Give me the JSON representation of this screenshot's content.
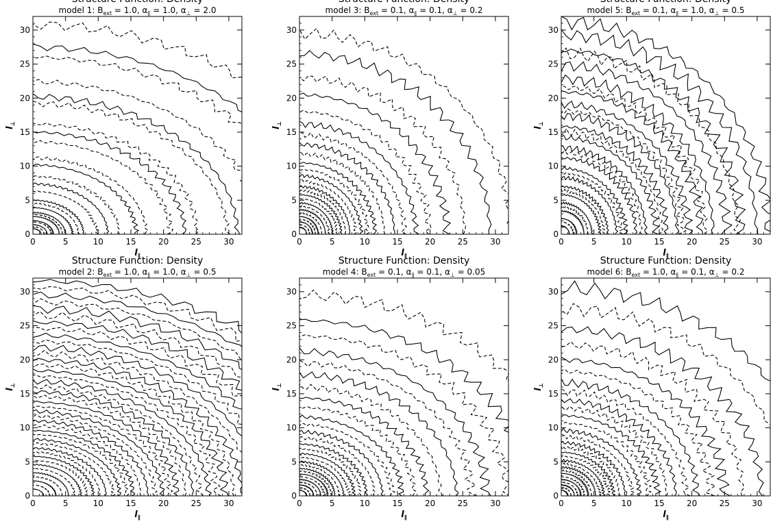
{
  "figure": {
    "panel_count": 6
  },
  "chart_data": [
    {
      "type": "contour",
      "title": "Structure Function: Density",
      "subtitle_parts": [
        "model 1: B",
        "ext",
        " = 1.0, α",
        "∥",
        " = 1.0, α",
        "⊥",
        " = 2.0"
      ],
      "xlabel": "l",
      "xlabel_sub": "∥",
      "ylabel": "l",
      "ylabel_sub": "⊥",
      "xlim": [
        0,
        32
      ],
      "ylim": [
        0,
        32
      ],
      "xticks": [
        0,
        5,
        10,
        15,
        20,
        25,
        30
      ],
      "yticks": [
        0,
        5,
        10,
        15,
        20,
        25,
        30
      ],
      "series": [
        {
          "style": "solid",
          "shape": "ellipse",
          "aspect_x_over_y": 1.55,
          "levels_y": [
            0.8,
            1.4,
            2.0,
            2.6,
            3.2,
            3.9,
            5.0,
            7.4,
            10.2,
            15.0,
            20.2,
            27.5
          ]
        },
        {
          "style": "dashed",
          "shape": "ellipse",
          "aspect_x_over_y": 1.55,
          "levels_y": [
            1.1,
            1.8,
            2.9,
            4.5,
            6.3,
            8.5,
            11.2,
            13.6,
            16.2,
            19.2,
            22.4,
            26.0,
            30.8
          ]
        }
      ]
    },
    {
      "type": "contour",
      "title": "Structure Function: Density",
      "subtitle_parts": [
        "model 3: B",
        "ext",
        " = 0.1, α",
        "∥",
        " = 0.1, α",
        "⊥",
        " = 0.2"
      ],
      "xlabel": "l",
      "xlabel_sub": "∥",
      "ylabel": "l",
      "ylabel_sub": "⊥",
      "xlim": [
        0,
        32
      ],
      "ylim": [
        0,
        32
      ],
      "xticks": [
        0,
        5,
        10,
        15,
        20,
        25,
        30
      ],
      "yticks": [
        0,
        5,
        10,
        15,
        20,
        25,
        30
      ],
      "series": [
        {
          "style": "solid",
          "shape": "ellipse",
          "aspect_x_over_y": 1.1,
          "levels_y": [
            1.0,
            1.8,
            2.6,
            3.6,
            4.6,
            5.8,
            7.0,
            8.6,
            10.5,
            13.2,
            16.2,
            20.5,
            26.5
          ]
        },
        {
          "style": "dashed",
          "shape": "ellipse",
          "aspect_x_over_y": 1.1,
          "levels_y": [
            1.4,
            2.2,
            3.1,
            4.1,
            5.2,
            6.4,
            7.8,
            9.5,
            11.8,
            14.6,
            18.0,
            23.0,
            29.5
          ]
        }
      ]
    },
    {
      "type": "contour",
      "title": "Structure Function: Density",
      "subtitle_parts": [
        "model 5: B",
        "ext",
        " = 0.1, α",
        "∥",
        " = 1.0, α",
        "⊥",
        " = 0.5"
      ],
      "xlabel": "l",
      "xlabel_sub": "∥",
      "ylabel": "l",
      "ylabel_sub": "⊥",
      "xlim": [
        0,
        32
      ],
      "ylim": [
        0,
        32
      ],
      "xticks": [
        0,
        5,
        10,
        15,
        20,
        25,
        30
      ],
      "yticks": [
        0,
        5,
        10,
        15,
        20,
        25,
        30
      ],
      "series": [
        {
          "style": "solid",
          "shape": "ellipse",
          "aspect_x_over_y": 1.02,
          "levels_y": [
            1.2,
            2.3,
            3.4,
            4.6,
            5.8,
            7.0,
            8.3,
            9.7,
            11.2,
            12.7,
            14.2,
            15.8,
            17.4,
            19.1,
            20.9,
            22.8,
            24.8,
            27.0,
            29.3,
            31.2
          ]
        },
        {
          "style": "dashed",
          "shape": "ellipse",
          "aspect_x_over_y": 1.02,
          "levels_y": [
            1.8,
            4.0,
            6.4,
            9.0,
            12.0,
            15.0,
            18.1,
            21.6,
            26.5
          ]
        }
      ]
    },
    {
      "type": "contour",
      "title": "Structure Function: Density",
      "subtitle_parts": [
        "model 2: B",
        "ext",
        " = 1.0, α",
        "∥",
        " = 1.0, α",
        "⊥",
        " = 0.5"
      ],
      "xlabel": "l",
      "xlabel_sub": "∥",
      "ylabel": "l",
      "ylabel_sub": "⊥",
      "xlim": [
        0,
        32
      ],
      "ylim": [
        0,
        32
      ],
      "xticks": [
        0,
        5,
        10,
        15,
        20,
        25,
        30
      ],
      "yticks": [
        0,
        5,
        10,
        15,
        20,
        25,
        30
      ],
      "series": [
        {
          "style": "solid",
          "shape": "ellipse",
          "aspect_x_over_y": 1.6,
          "levels_y": [
            1.0,
            2.2,
            3.4,
            4.6,
            5.8,
            7.0,
            8.3,
            9.6,
            11.0,
            12.4,
            13.8,
            15.3,
            16.8,
            18.4,
            20.0,
            21.8,
            23.6,
            25.5,
            27.5,
            29.5,
            31.6
          ]
        },
        {
          "style": "dashed",
          "shape": "ellipse",
          "aspect_x_over_y": 1.6,
          "levels_y": [
            1.6,
            2.8,
            4.0,
            5.2,
            6.4,
            7.7,
            9.0,
            10.3,
            11.7,
            13.1,
            14.6,
            16.0,
            17.6,
            19.2,
            20.9,
            22.7,
            24.6,
            26.5,
            28.5,
            30.6
          ]
        }
      ]
    },
    {
      "type": "contour",
      "title": "Structure Function: Density",
      "subtitle_parts": [
        "model 4: B",
        "ext",
        " = 0.1, α",
        "∥",
        " = 0.1, α",
        "⊥",
        " = 0.05"
      ],
      "xlabel": "l",
      "xlabel_sub": "∥",
      "ylabel": "l",
      "ylabel_sub": "⊥",
      "xlim": [
        0,
        32
      ],
      "ylim": [
        0,
        32
      ],
      "xticks": [
        0,
        5,
        10,
        15,
        20,
        25,
        30
      ],
      "yticks": [
        0,
        5,
        10,
        15,
        20,
        25,
        30
      ],
      "series": [
        {
          "style": "solid",
          "shape": "ellipse",
          "aspect_x_over_y": 1.35,
          "levels_y": [
            0.8,
            1.6,
            2.4,
            3.2,
            4.0,
            5.0,
            6.2,
            7.6,
            9.4,
            11.6,
            14.4,
            17.8,
            21.2,
            25.8
          ]
        },
        {
          "style": "dashed",
          "shape": "ellipse",
          "aspect_x_over_y": 1.35,
          "levels_y": [
            1.2,
            2.0,
            2.8,
            3.6,
            4.5,
            5.6,
            6.9,
            8.5,
            10.5,
            13.0,
            16.0,
            19.5,
            23.5,
            29.5
          ]
        }
      ]
    },
    {
      "type": "contour",
      "title": "Structure Function: Density",
      "subtitle_parts": [
        "model 6: B",
        "ext",
        " = 1.0, α",
        "∥",
        " = 0.1, α",
        "⊥",
        " = 0.2"
      ],
      "xlabel": "l",
      "xlabel_sub": "∥",
      "ylabel": "l",
      "ylabel_sub": "⊥",
      "xlim": [
        0,
        32
      ],
      "ylim": [
        0,
        32
      ],
      "xticks": [
        0,
        5,
        10,
        15,
        20,
        25,
        30
      ],
      "yticks": [
        0,
        5,
        10,
        15,
        20,
        25,
        30
      ],
      "series": [
        {
          "style": "solid",
          "shape": "ellipse",
          "aspect_x_over_y": 1.25,
          "levels_y": [
            0.8,
            1.6,
            2.4,
            3.3,
            4.2,
            5.2,
            6.4,
            7.8,
            9.6,
            11.8,
            14.0,
            16.6,
            20.0,
            24.5,
            30.5
          ]
        },
        {
          "style": "dashed",
          "shape": "ellipse",
          "aspect_x_over_y": 1.25,
          "levels_y": [
            1.2,
            2.0,
            2.8,
            3.7,
            4.7,
            5.8,
            7.1,
            8.7,
            10.7,
            12.9,
            15.3,
            18.3,
            22.2,
            27.5
          ]
        }
      ]
    }
  ]
}
